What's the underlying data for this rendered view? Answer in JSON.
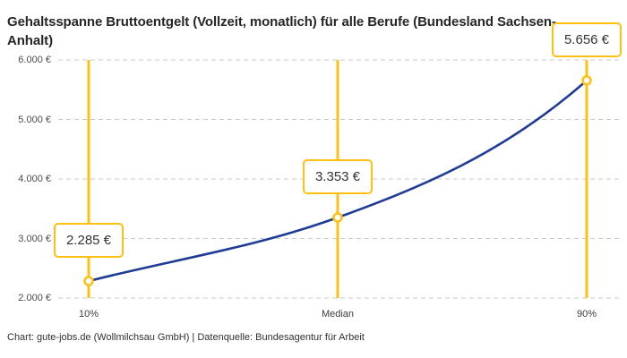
{
  "title": "Gehaltsspanne Bruttoentgelt (Vollzeit, monatlich) für alle Berufe (Bundesland Sachsen-Anhalt)",
  "footer": "Chart: gute-jobs.de (Wollmilchsau GmbH) | Datenquelle: Bundesagentur für Arbeit",
  "colors": {
    "accent_yellow": "#FDC013",
    "line_blue": "#1E3C96",
    "grid_gray": "#CBCBCB",
    "title_text": "#262626",
    "axis_text": "#4B4B4B"
  },
  "chart_data": {
    "type": "line",
    "title": "Gehaltsspanne Bruttoentgelt (Vollzeit, monatlich) für alle Berufe (Bundesland Sachsen-Anhalt)",
    "categories": [
      "10%",
      "Median",
      "90%"
    ],
    "values": [
      2285,
      3353,
      5656
    ],
    "value_labels": [
      "2.285 €",
      "3.353 €",
      "5.656 €"
    ],
    "unit": "€",
    "ylim": [
      2000,
      6000
    ],
    "yticks": [
      2000,
      3000,
      4000,
      5000,
      6000
    ],
    "ytick_labels": [
      "2.000 €",
      "3.000 €",
      "4.000 €",
      "5.000 €",
      "6.000 €"
    ],
    "xlabel": "",
    "ylabel": "",
    "grid": "horizontal-dashed",
    "legend": "none",
    "annotations": "value label box above each percentile marker, vertical guide line per category"
  }
}
